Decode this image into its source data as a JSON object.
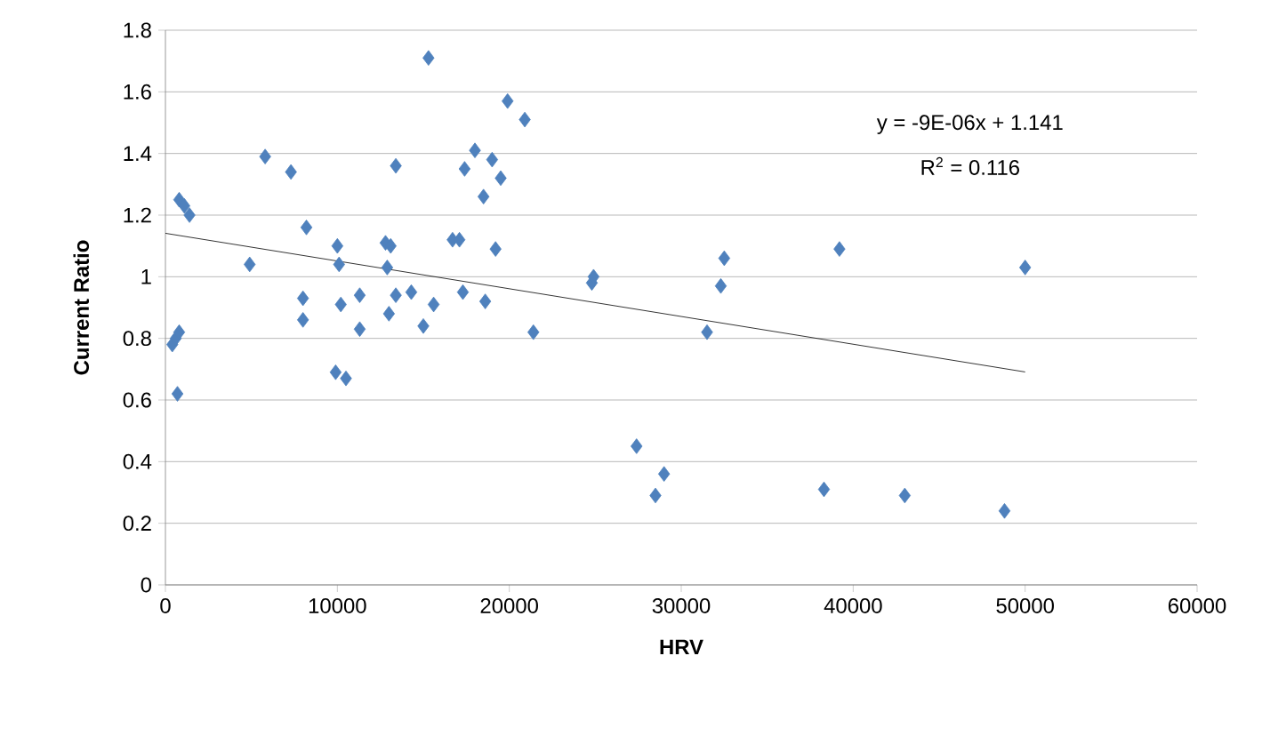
{
  "chart_data": {
    "type": "scatter",
    "xlabel": "HRV",
    "ylabel": "Current Ratio",
    "xlim": [
      0,
      60000
    ],
    "xticks": [
      0,
      10000,
      20000,
      30000,
      40000,
      50000,
      60000
    ],
    "ylim": [
      0,
      1.8
    ],
    "yticks": [
      0,
      0.2,
      0.4,
      0.6,
      0.8,
      1,
      1.2,
      1.4,
      1.6,
      1.8
    ],
    "grid": "y",
    "legend": false,
    "marker": "diamond",
    "series": [
      {
        "color": "#4f81bd",
        "x": [
          400,
          600,
          800,
          700,
          800,
          1100,
          1400,
          4900,
          5800,
          7300,
          8200,
          8000,
          8000,
          9900,
          10500,
          10000,
          10100,
          10200,
          11300,
          11300,
          12800,
          13100,
          12900,
          13000,
          13400,
          13400,
          14300,
          15000,
          15300,
          15600,
          16700,
          17100,
          17400,
          17300,
          18000,
          18500,
          18600,
          19000,
          19200,
          19500,
          19900,
          20900,
          21400,
          24800,
          24900,
          27400,
          28500,
          29000,
          31500,
          32300,
          32500,
          38300,
          39200,
          43000,
          48800,
          50000
        ],
        "values": [
          0.78,
          0.8,
          0.82,
          0.62,
          1.25,
          1.23,
          1.2,
          1.04,
          1.39,
          1.34,
          1.16,
          0.93,
          0.86,
          0.69,
          0.67,
          1.1,
          1.04,
          0.91,
          0.83,
          0.94,
          1.11,
          1.1,
          1.03,
          0.88,
          0.94,
          1.36,
          0.95,
          0.84,
          1.71,
          0.91,
          1.12,
          1.12,
          1.35,
          0.95,
          1.41,
          1.26,
          0.92,
          1.38,
          1.09,
          1.32,
          1.57,
          1.51,
          0.82,
          0.98,
          1.0,
          0.45,
          0.29,
          0.36,
          0.82,
          0.97,
          1.06,
          0.31,
          1.09,
          0.29,
          0.24,
          1.03
        ]
      },
      {
        "type": "line",
        "color": "#000000",
        "marker": "none",
        "x": [
          0,
          50000
        ],
        "values": [
          1.141,
          0.691
        ]
      }
    ],
    "annotations": [
      "y = -9E-06x + 1.141",
      "R$^{2}$ = 0.116"
    ]
  }
}
